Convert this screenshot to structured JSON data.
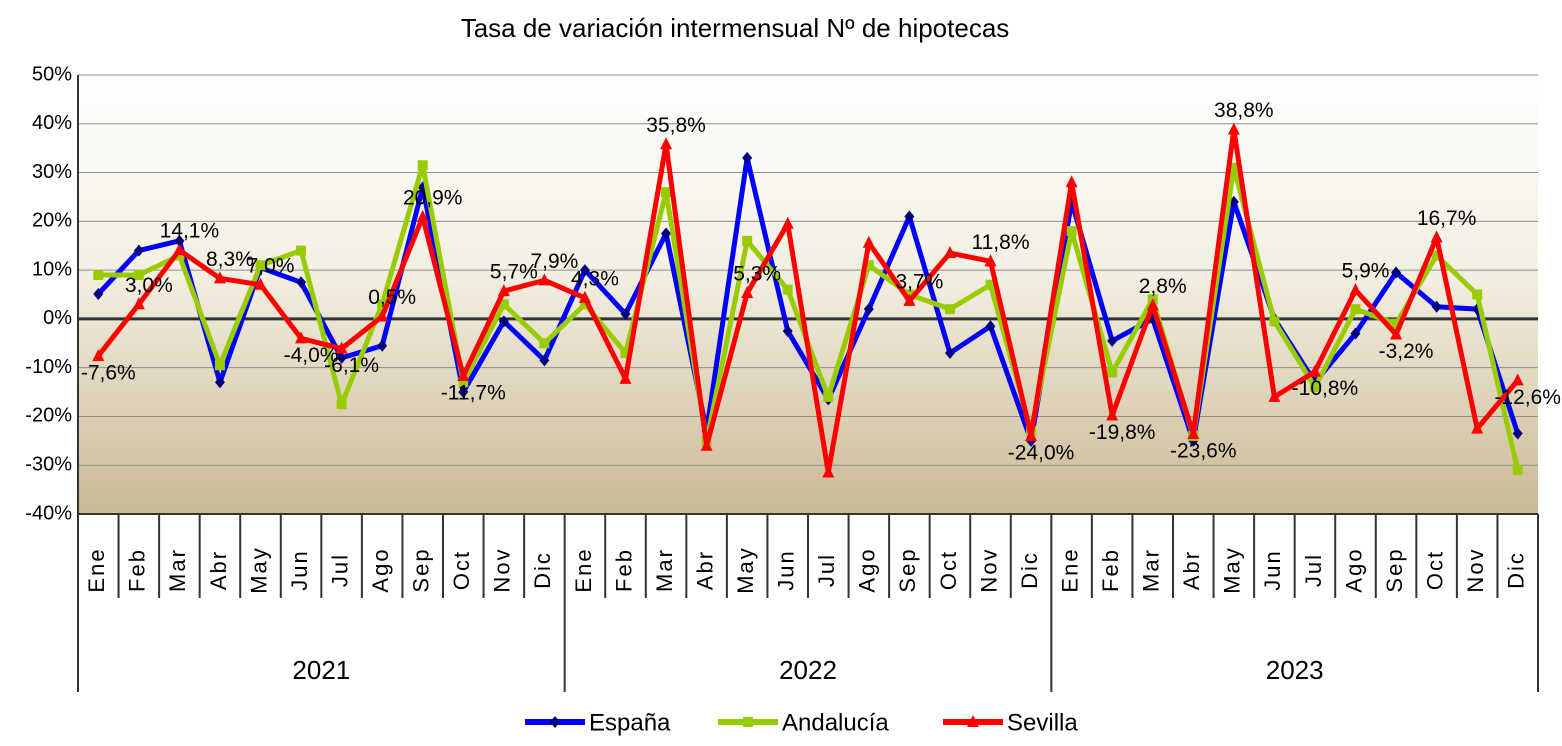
{
  "chart_data": {
    "type": "line",
    "title": "Tasa de variación intermensual Nº de hipotecas",
    "categories": [
      "Ene",
      "Feb",
      "Mar",
      "Abr",
      "May",
      "Jun",
      "Jul",
      "Ago",
      "Sep",
      "Oct",
      "Nov",
      "Dic",
      "Ene",
      "Feb",
      "Mar",
      "Abr",
      "May",
      "Jun",
      "Jul",
      "Ago",
      "Sep",
      "Oct",
      "Nov",
      "Dic",
      "Ene",
      "Feb",
      "Mar",
      "Abr",
      "May",
      "Jun",
      "Jul",
      "Ago",
      "Sep",
      "Oct",
      "Nov",
      "Dic"
    ],
    "year_groups": [
      "2021",
      "2022",
      "2023"
    ],
    "ylim": [
      -40,
      50
    ],
    "yticks": [
      {
        "value": -40,
        "label": "-40%"
      },
      {
        "value": -30,
        "label": "-30%"
      },
      {
        "value": -20,
        "label": "-20%"
      },
      {
        "value": -10,
        "label": "-10%"
      },
      {
        "value": 0,
        "label": "0%"
      },
      {
        "value": 10,
        "label": "10%"
      },
      {
        "value": 20,
        "label": "20%"
      },
      {
        "value": 30,
        "label": "30%"
      },
      {
        "value": 40,
        "label": "40%"
      },
      {
        "value": 50,
        "label": "50%"
      }
    ],
    "grid": true,
    "series": [
      {
        "name": "España",
        "color": "#0000ff",
        "marker": "diamond",
        "values": [
          5.1,
          14,
          16,
          -13,
          10.5,
          7.5,
          -8,
          -5.5,
          27,
          -15,
          -0.5,
          -8.5,
          10,
          1,
          17.5,
          -23,
          33,
          -2.5,
          -16.5,
          2,
          21,
          -7,
          -1.5,
          -25,
          24,
          -4.5,
          0,
          -25,
          24,
          0,
          -13,
          -3,
          9.5,
          2.5,
          2,
          -23.5
        ]
      },
      {
        "name": "Andalucía",
        "color": "#99cc00",
        "marker": "square",
        "values": [
          9,
          9,
          13,
          -9.5,
          11,
          14,
          -17.5,
          3,
          31.5,
          -13,
          3,
          -5,
          3,
          -7,
          26,
          -25,
          16,
          6,
          -16,
          11,
          5,
          2,
          7,
          -23,
          18,
          -11,
          4,
          -24,
          31,
          -0.5,
          -14,
          2,
          -1,
          13,
          5,
          -31
        ]
      },
      {
        "name": "Sevilla",
        "color": "#ff0000",
        "marker": "triangle",
        "values": [
          -7.6,
          3.0,
          14.1,
          8.3,
          7.0,
          -4.0,
          -6.1,
          0.5,
          20.9,
          -11.7,
          5.7,
          7.9,
          4.3,
          -12.3,
          35.8,
          -26,
          5.3,
          19.5,
          -31.5,
          15.6,
          3.7,
          13.5,
          11.8,
          -24.0,
          28,
          -19.8,
          2.8,
          -23.6,
          38.8,
          -16,
          -10.8,
          5.9,
          -3.2,
          16.7,
          -22.5,
          -12.6
        ],
        "value_labels": [
          "-7,6%",
          "3,0%",
          "14,1%",
          "8,3%",
          "7,0%",
          "-4,0%",
          "-6,1%",
          "0,5%",
          "20,9%",
          "-11,7%",
          "5,7%",
          "7,9%",
          "4,3%",
          null,
          "35,8%",
          null,
          "5,3%",
          null,
          null,
          null,
          "3,7%",
          null,
          "11,8%",
          "-24,0%",
          null,
          "-19,8%",
          "2,8%",
          "-23,6%",
          "38,8%",
          null,
          "-10,8%",
          "5,9%",
          "-3,2%",
          "16,7%",
          null,
          "-12,6%"
        ]
      }
    ]
  }
}
